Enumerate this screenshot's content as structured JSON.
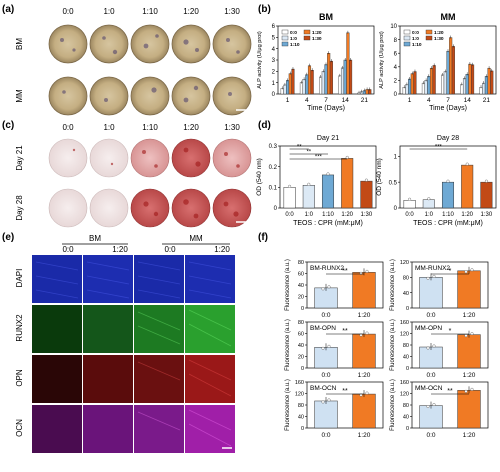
{
  "colors": {
    "c0": "#ffffff",
    "c10": "#dce9f5",
    "c110": "#6ea9d4",
    "c120": "#f07a24",
    "c130": "#c24a16",
    "blue_bar": "#cfe1f2",
    "orange_bar": "#f07a24",
    "dapi": "#1a2aa8",
    "runx2": "#1d8f22",
    "opn": "#c21818",
    "ocn": "#a51aa5"
  },
  "panel_a": {
    "label": "(a)",
    "columns": [
      "0:0",
      "1:0",
      "1:10",
      "1:20",
      "1:30"
    ],
    "rows": [
      "BM",
      "MM"
    ]
  },
  "panel_c": {
    "label": "(c)",
    "columns": [
      "0:0",
      "1:0",
      "1:10",
      "1:20",
      "1:30"
    ],
    "rows": [
      "Day 21",
      "Day 28"
    ]
  },
  "panel_e": {
    "label": "(e)",
    "groups": [
      "BM",
      "MM"
    ],
    "columns": [
      "0:0",
      "1:20",
      "0:0",
      "1:20"
    ],
    "rows": [
      "DAPI",
      "RUNX2",
      "OPN",
      "OCN"
    ]
  },
  "panel_labels": {
    "b": "(b)",
    "d": "(d)",
    "f": "(f)"
  },
  "chart_data": [
    {
      "id": "b-BM",
      "type": "bar",
      "title": "BM",
      "xlabel": "Time (Days)",
      "ylabel": "ALP activity (U/μg prot)",
      "categories": [
        "1",
        "4",
        "7",
        "14",
        "21"
      ],
      "ylim": [
        0,
        6
      ],
      "yticks": [
        0,
        1,
        2,
        3,
        4,
        5,
        6
      ],
      "legend": [
        "0:0",
        "1:0",
        "1:10",
        "1:20",
        "1:30"
      ],
      "series": [
        {
          "name": "0:0",
          "values": [
            0.5,
            1.0,
            1.5,
            1.6,
            0.1
          ]
        },
        {
          "name": "1:0",
          "values": [
            0.8,
            1.3,
            2.0,
            2.3,
            0.2
          ]
        },
        {
          "name": "1:10",
          "values": [
            1.2,
            1.7,
            2.6,
            3.0,
            0.3
          ]
        },
        {
          "name": "1:20",
          "values": [
            1.8,
            2.5,
            3.6,
            5.4,
            0.4
          ]
        },
        {
          "name": "1:30",
          "values": [
            2.2,
            2.1,
            2.9,
            3.0,
            0.4
          ]
        }
      ]
    },
    {
      "id": "b-MM",
      "type": "bar",
      "title": "MM",
      "xlabel": "Time (Days)",
      "ylabel": "ALP activity (U/μg prot)",
      "categories": [
        "1",
        "4",
        "7",
        "14",
        "21"
      ],
      "ylim": [
        0,
        10
      ],
      "yticks": [
        0,
        2,
        4,
        6,
        8,
        10
      ],
      "legend": [
        "0:0",
        "1:0",
        "1:10",
        "1:20",
        "1:30"
      ],
      "series": [
        {
          "name": "0:0",
          "values": [
            1.0,
            1.6,
            2.8,
            1.4,
            1.0
          ]
        },
        {
          "name": "1:0",
          "values": [
            1.4,
            2.0,
            3.3,
            2.3,
            1.6
          ]
        },
        {
          "name": "1:10",
          "values": [
            2.2,
            2.6,
            6.3,
            2.9,
            2.6
          ]
        },
        {
          "name": "1:20",
          "values": [
            3.0,
            3.8,
            8.3,
            4.4,
            3.8
          ]
        },
        {
          "name": "1:30",
          "values": [
            3.3,
            4.2,
            7.0,
            4.3,
            3.4
          ]
        }
      ]
    },
    {
      "id": "d-21",
      "type": "bar",
      "title": "Day 21",
      "xlabel": "TEOS : CPR (mM:μM)",
      "ylabel": "OD (540 nm)",
      "categories": [
        "0:0",
        "1:0",
        "1:10",
        "1:20",
        "1:30"
      ],
      "ylim": [
        0,
        0.3
      ],
      "yticks": [
        0.0,
        0.1,
        0.2,
        0.3
      ],
      "values": [
        0.1,
        0.11,
        0.16,
        0.24,
        0.13
      ],
      "significance": [
        "**",
        "**",
        "***"
      ]
    },
    {
      "id": "d-28",
      "type": "bar",
      "title": "Day 28",
      "xlabel": "TEOS : CPR (mM:μM)",
      "ylabel": "OD (540 nm)",
      "categories": [
        "0:0",
        "1:0",
        "1:10",
        "1:20",
        "1:30"
      ],
      "ylim": [
        0,
        1.2
      ],
      "yticks": [
        0.0,
        0.5,
        1.0
      ],
      "values": [
        0.15,
        0.16,
        0.5,
        0.83,
        0.5
      ],
      "significance": [
        "***"
      ]
    },
    {
      "id": "f-BM-RUNX2",
      "type": "bar",
      "inner_label": "BM-RUNX2",
      "ylabel": "Fluorescence (a.u.)",
      "categories": [
        "0:0",
        "1:20"
      ],
      "ylim": [
        0,
        80
      ],
      "yticks": [
        0,
        20,
        40,
        60,
        80
      ],
      "values": [
        35,
        62
      ],
      "significance": "**"
    },
    {
      "id": "f-MM-RUNX2",
      "type": "bar",
      "inner_label": "MM-RUNX2",
      "ylabel": "Fluorescence (a.u.)",
      "categories": [
        "0:0",
        "1:20"
      ],
      "ylim": [
        0,
        120
      ],
      "yticks": [
        0,
        40,
        80,
        120
      ],
      "values": [
        80,
        97
      ],
      "significance": "*"
    },
    {
      "id": "f-BM-OPN",
      "type": "bar",
      "inner_label": "BM-OPN",
      "ylabel": "Fluorescence (a.u.)",
      "categories": [
        "0:0",
        "1:20"
      ],
      "ylim": [
        0,
        80
      ],
      "yticks": [
        0,
        20,
        40,
        60,
        80
      ],
      "values": [
        36,
        59
      ],
      "significance": "**"
    },
    {
      "id": "f-MM-OPN",
      "type": "bar",
      "inner_label": "MM-OPN",
      "ylabel": "Fluorescence (a.u.)",
      "categories": [
        "0:0",
        "1:20"
      ],
      "ylim": [
        0,
        160
      ],
      "yticks": [
        0,
        40,
        80,
        120,
        160
      ],
      "values": [
        73,
        116
      ],
      "significance": "*"
    },
    {
      "id": "f-BM-OCN",
      "type": "bar",
      "inner_label": "BM-OCN",
      "ylabel": "Fluorescence (a.u.)",
      "categories": [
        "0:0",
        "1:20"
      ],
      "ylim": [
        0,
        160
      ],
      "yticks": [
        0,
        40,
        80,
        120,
        160
      ],
      "values": [
        94,
        118
      ],
      "significance": "**"
    },
    {
      "id": "f-MM-OCN",
      "type": "bar",
      "inner_label": "MM-OCN",
      "ylabel": "Fluorescence (a.u.)",
      "categories": [
        "0:0",
        "1:20"
      ],
      "ylim": [
        0,
        160
      ],
      "yticks": [
        0,
        40,
        80,
        120,
        160
      ],
      "values": [
        78,
        131
      ],
      "significance": "**"
    }
  ]
}
